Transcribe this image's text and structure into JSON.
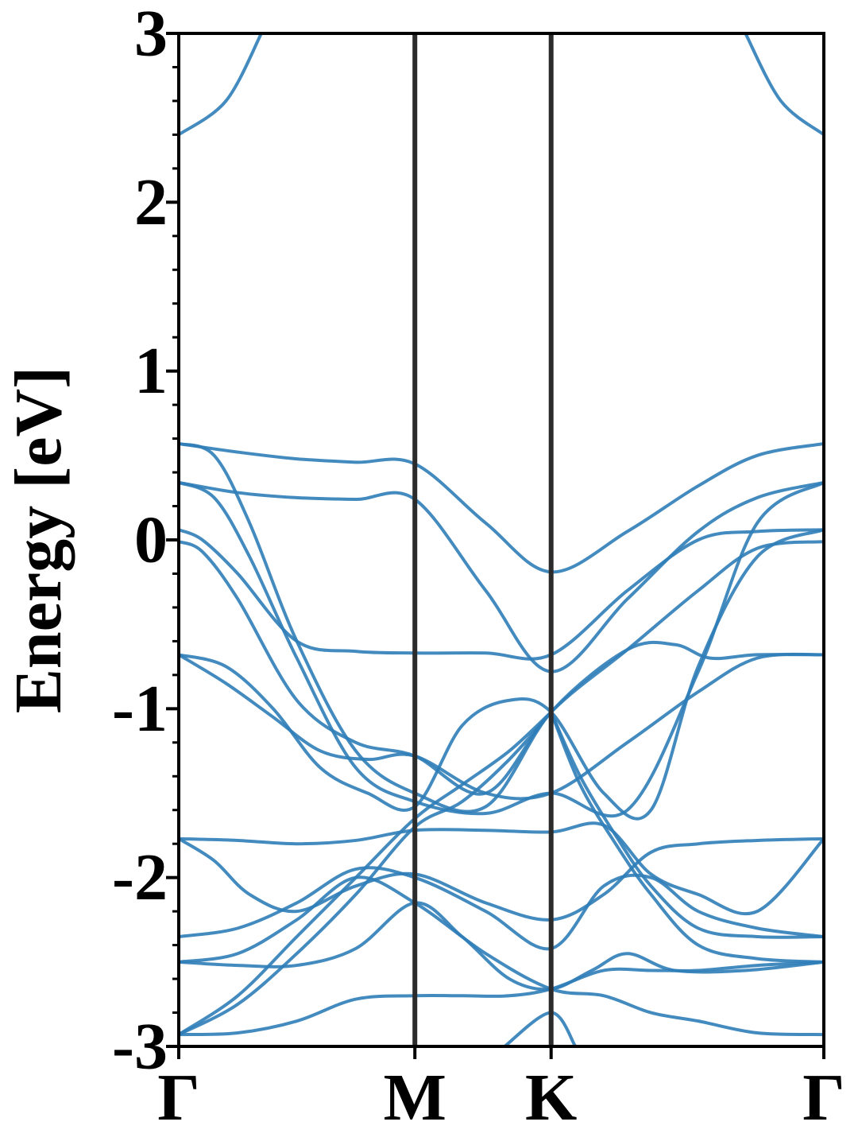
{
  "chart_data": {
    "type": "line",
    "title": "",
    "xlabel": "",
    "ylabel": "Energy [eV]",
    "ylim": [
      -3,
      3
    ],
    "yticks": [
      -3,
      -2,
      -1,
      0,
      1,
      2,
      3
    ],
    "ytick_labels": [
      "-3",
      "-2",
      "-1",
      "0",
      "1",
      "2",
      "3"
    ],
    "xlim": [
      0,
      2.732
    ],
    "high_symmetry_points": [
      {
        "label": "Γ",
        "x": 0
      },
      {
        "label": "M",
        "x": 1.0
      },
      {
        "label": "K",
        "x": 1.577
      },
      {
        "label": "Γ",
        "x": 2.732
      }
    ],
    "grid": false,
    "legend": "none",
    "series_color": "#2f7db8",
    "divider_color": "#2b2b2b",
    "series": [
      {
        "x": [
          0,
          0.25,
          0.5,
          0.75,
          1.0,
          1.3,
          1.577,
          1.9,
          2.2,
          2.45,
          2.732
        ],
        "values": [
          0.57,
          0.52,
          0.48,
          0.46,
          0.45,
          0.1,
          -0.19,
          0.05,
          0.32,
          0.5,
          0.57
        ]
      },
      {
        "x": [
          0,
          0.25,
          0.5,
          0.75,
          1.0,
          1.3,
          1.577,
          1.9,
          2.2,
          2.45,
          2.732
        ],
        "values": [
          0.34,
          0.28,
          0.25,
          0.24,
          0.24,
          -0.3,
          -0.78,
          -0.35,
          0.05,
          0.25,
          0.34
        ]
      },
      {
        "x": [
          0,
          0.1,
          0.25,
          0.5,
          0.75,
          1.0,
          1.3,
          1.577,
          1.9,
          2.2,
          2.45,
          2.732
        ],
        "values": [
          0.06,
          0.0,
          -0.2,
          -0.6,
          -0.66,
          -0.67,
          -0.67,
          -0.68,
          -0.3,
          0.0,
          0.05,
          0.06
        ]
      },
      {
        "x": [
          0,
          0.1,
          0.25,
          0.5,
          0.75,
          1.0,
          1.3,
          1.577,
          1.9,
          2.2,
          2.45,
          2.732
        ],
        "values": [
          -0.01,
          -0.07,
          -0.35,
          -0.95,
          -1.2,
          -1.28,
          -1.5,
          -1.02,
          -0.65,
          -0.3,
          -0.05,
          -0.01
        ]
      },
      {
        "x": [
          0,
          0.15,
          0.3,
          0.5,
          0.75,
          1.0,
          1.3,
          1.577,
          1.9,
          2.1,
          2.25,
          2.45,
          2.732
        ],
        "values": [
          0.57,
          0.5,
          0.1,
          -0.6,
          -1.25,
          -1.5,
          -1.58,
          -1.02,
          -0.65,
          -0.62,
          -0.7,
          -0.68,
          -0.68
        ]
      },
      {
        "x": [
          0,
          0.15,
          0.3,
          0.5,
          0.75,
          1.0,
          1.3,
          1.577,
          1.9,
          2.2,
          2.45,
          2.732
        ],
        "values": [
          0.34,
          0.25,
          -0.1,
          -0.7,
          -1.35,
          -1.55,
          -1.62,
          -1.5,
          -1.6,
          -0.78,
          0.1,
          0.34
        ]
      },
      {
        "x": [
          0,
          0.2,
          0.4,
          0.6,
          0.8,
          1.0,
          1.2,
          1.4,
          1.577,
          1.8,
          2.0,
          2.2,
          2.45,
          2.732
        ],
        "values": [
          -0.68,
          -0.75,
          -1.0,
          -1.35,
          -1.5,
          -1.58,
          -1.1,
          -0.95,
          -1.02,
          -1.5,
          -1.6,
          -0.75,
          -0.1,
          0.06
        ]
      },
      {
        "x": [
          0,
          0.2,
          0.4,
          0.6,
          0.8,
          1.0,
          1.3,
          1.577,
          1.9,
          2.2,
          2.45,
          2.732
        ],
        "values": [
          -0.68,
          -0.85,
          -1.05,
          -1.25,
          -1.3,
          -1.28,
          -1.5,
          -1.5,
          -1.2,
          -0.9,
          -0.7,
          -0.68
        ]
      },
      {
        "x": [
          0,
          0.25,
          0.5,
          0.75,
          1.0,
          1.3,
          1.577,
          1.8,
          2.0,
          2.2,
          2.45,
          2.732
        ],
        "values": [
          -1.77,
          -1.78,
          -1.8,
          -1.78,
          -1.72,
          -1.72,
          -1.73,
          -1.69,
          -1.98,
          -2.1,
          -2.2,
          -1.77
        ]
      },
      {
        "x": [
          0,
          0.15,
          0.3,
          0.5,
          0.75,
          1.0,
          1.3,
          1.577,
          1.8,
          2.0,
          2.2,
          2.45,
          2.732
        ],
        "values": [
          -1.77,
          -1.9,
          -2.1,
          -2.2,
          -2.05,
          -1.98,
          -2.15,
          -2.25,
          -2.1,
          -1.85,
          -1.8,
          -1.78,
          -1.77
        ]
      },
      {
        "x": [
          0,
          0.25,
          0.5,
          0.75,
          1.0,
          1.3,
          1.577,
          1.8,
          2.0,
          2.2,
          2.45,
          2.732
        ],
        "values": [
          -2.35,
          -2.3,
          -2.15,
          -1.95,
          -2.0,
          -2.2,
          -2.42,
          -2.05,
          -2.0,
          -2.2,
          -2.3,
          -2.35
        ]
      },
      {
        "x": [
          0,
          0.25,
          0.5,
          0.75,
          1.0,
          1.3,
          1.577,
          1.8,
          2.0,
          2.2,
          2.45,
          2.732
        ],
        "values": [
          -2.5,
          -2.45,
          -2.25,
          -2.0,
          -2.15,
          -2.45,
          -2.66,
          -2.7,
          -2.8,
          -2.85,
          -2.92,
          -2.93
        ]
      },
      {
        "x": [
          0,
          0.25,
          0.5,
          0.75,
          1.0,
          1.2,
          1.4,
          1.577,
          1.75,
          1.9,
          2.1,
          2.4,
          2.732
        ],
        "values": [
          -2.5,
          -2.52,
          -2.52,
          -2.42,
          -2.15,
          -2.35,
          -2.6,
          -2.66,
          -2.55,
          -2.45,
          -2.55,
          -2.55,
          -2.5
        ]
      },
      {
        "x": [
          0,
          0.25,
          0.5,
          0.75,
          1.0,
          1.2,
          1.4,
          1.577,
          1.8,
          2.0,
          2.2,
          2.45,
          2.732
        ],
        "values": [
          -2.93,
          -2.92,
          -2.85,
          -2.72,
          -2.7,
          -2.7,
          -2.7,
          -2.66,
          -2.55,
          -2.55,
          -2.55,
          -2.52,
          -2.5
        ]
      },
      {
        "x": [
          0,
          0.25,
          0.5,
          0.75,
          1.0,
          1.2,
          1.4,
          1.577
        ],
        "values": [
          -2.93,
          -2.75,
          -2.45,
          -2.1,
          -1.7,
          -1.55,
          -1.3,
          -1.02
        ]
      },
      {
        "x": [
          0,
          0.25,
          0.5,
          0.75,
          1.0,
          1.2,
          1.4,
          1.577
        ],
        "values": [
          -2.93,
          -2.7,
          -2.35,
          -2.0,
          -1.65,
          -1.45,
          -1.25,
          -1.02
        ]
      },
      {
        "x": [
          1.577,
          1.7,
          1.85,
          2.0,
          2.2,
          2.45,
          2.732
        ],
        "values": [
          -1.02,
          -1.4,
          -1.75,
          -2.05,
          -2.3,
          -2.35,
          -2.35
        ]
      },
      {
        "x": [
          1.577,
          1.7,
          1.85,
          2.0,
          2.2,
          2.45,
          2.732
        ],
        "values": [
          -1.02,
          -1.45,
          -1.8,
          -2.1,
          -2.4,
          -2.48,
          -2.5
        ]
      },
      {
        "x": [
          1.38,
          1.577,
          1.68
        ],
        "values": [
          -3.0,
          -2.8,
          -3.0
        ]
      },
      {
        "x": [
          0,
          0.2,
          0.35
        ],
        "values": [
          2.4,
          2.6,
          3.0
        ]
      },
      {
        "x": [
          2.4,
          2.55,
          2.732
        ],
        "values": [
          3.0,
          2.6,
          2.4
        ]
      }
    ]
  }
}
